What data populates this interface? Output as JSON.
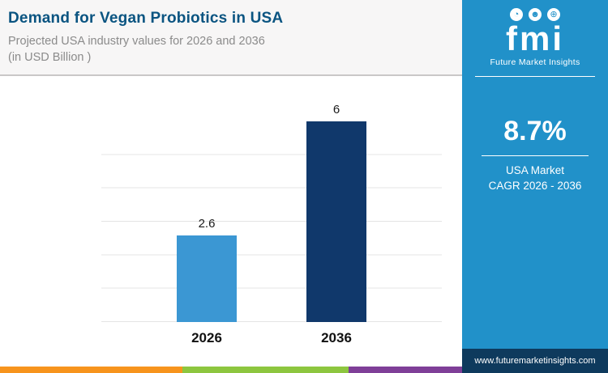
{
  "header": {
    "title": "Demand for Vegan Probiotics in USA",
    "subtitle_line1": "Projected USA industry values for 2026 and 2036",
    "subtitle_line2": "(in USD Billion )"
  },
  "chart_data": {
    "type": "bar",
    "categories": [
      "2026",
      "2036"
    ],
    "values": [
      2.6,
      6
    ],
    "value_labels": [
      "2.6",
      "6"
    ],
    "title": "Demand for Vegan Probiotics in USA",
    "subtitle": "Projected USA industry values for 2026 and 2036 (in USD Billion )",
    "xlabel": "",
    "ylabel": "",
    "ylim": [
      0,
      6
    ],
    "grid": true,
    "legend_position": "none",
    "bar_colors": [
      "#3b97d3",
      "#10386b"
    ]
  },
  "side_panel": {
    "logo_text": "fmi",
    "logo_subtext": "Future Market Insights",
    "icons": [
      {
        "name": "pie-chart-icon",
        "glyph": "◔"
      },
      {
        "name": "person-icon",
        "glyph": "☻"
      },
      {
        "name": "globe-icon",
        "glyph": "⊕"
      }
    ],
    "stat_value": "8.7%",
    "stat_label_line1": "USA Market",
    "stat_label_line2": "CAGR 2026 - 2036",
    "website": "www.futuremarketinsights.com"
  },
  "colors": {
    "panel_blue": "#2191c9",
    "panel_dark": "#0e3a5d",
    "title_blue": "#0a5481",
    "strip_orange": "#f7941d",
    "strip_green": "#8dc63f",
    "strip_purple": "#7f3f98"
  }
}
